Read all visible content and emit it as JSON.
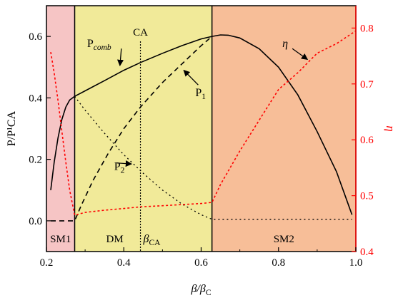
{
  "chart_data": {
    "type": "line",
    "xlabel": "β/βC",
    "xlabel_main": "β/β",
    "xlabel_sub": "C",
    "ylabel_left": "P/P¹CA",
    "ylabel_right": "η",
    "xlim": [
      0.2,
      1.0
    ],
    "ylim_left": [
      -0.1,
      0.7
    ],
    "ylim_right": [
      0.4,
      0.84
    ],
    "xticks": [
      0.2,
      0.4,
      0.6,
      0.8,
      1.0
    ],
    "xtick_labels": [
      "0.2",
      "0.4",
      "0.6",
      "0.8",
      "1.0"
    ],
    "yticks_left": [
      0.0,
      0.2,
      0.4,
      0.6
    ],
    "ytick_labels_left": [
      "0.0",
      "0.2",
      "0.4",
      "0.6"
    ],
    "yticks_right": [
      0.4,
      0.5,
      0.6,
      0.7,
      0.8
    ],
    "ytick_labels_right": [
      "0.4",
      "0.5",
      "0.6",
      "0.7",
      "0.8"
    ],
    "regions": [
      {
        "label": "SM1",
        "x0": 0.2,
        "x1": 0.273,
        "color": "#f6c5c5"
      },
      {
        "label": "DM",
        "x0": 0.273,
        "x1": 0.628,
        "color": "#f1ea99"
      },
      {
        "label": "SM2",
        "x0": 0.628,
        "x1": 1.0,
        "color": "#f7be98"
      }
    ],
    "ca_line": {
      "x": 0.443,
      "top_label": "CA",
      "bottom_label_main": "β",
      "bottom_label_sub": "CA"
    },
    "series": [
      {
        "name": "Pcomb",
        "axis": "left",
        "style": "solid",
        "color": "#000000",
        "points": [
          [
            0.211,
            0.1
          ],
          [
            0.22,
            0.19
          ],
          [
            0.23,
            0.27
          ],
          [
            0.24,
            0.33
          ],
          [
            0.25,
            0.37
          ],
          [
            0.26,
            0.393
          ],
          [
            0.273,
            0.405
          ],
          [
            0.3,
            0.423
          ],
          [
            0.35,
            0.456
          ],
          [
            0.4,
            0.49
          ],
          [
            0.443,
            0.515
          ],
          [
            0.5,
            0.545
          ],
          [
            0.55,
            0.57
          ],
          [
            0.6,
            0.592
          ],
          [
            0.628,
            0.6
          ],
          [
            0.65,
            0.605
          ],
          [
            0.67,
            0.604
          ],
          [
            0.7,
            0.595
          ],
          [
            0.75,
            0.56
          ],
          [
            0.8,
            0.5
          ],
          [
            0.85,
            0.41
          ],
          [
            0.9,
            0.29
          ],
          [
            0.95,
            0.16
          ],
          [
            0.99,
            0.02
          ]
        ]
      },
      {
        "name": "P1",
        "axis": "left",
        "style": "dashed",
        "color": "#000000",
        "points": [
          [
            0.211,
            0.0
          ],
          [
            0.273,
            0.0
          ],
          [
            0.29,
            0.05
          ],
          [
            0.32,
            0.13
          ],
          [
            0.36,
            0.22
          ],
          [
            0.4,
            0.3
          ],
          [
            0.443,
            0.37
          ],
          [
            0.5,
            0.45
          ],
          [
            0.55,
            0.51
          ],
          [
            0.6,
            0.57
          ],
          [
            0.628,
            0.6
          ]
        ]
      },
      {
        "name": "P2",
        "axis": "left",
        "style": "dotted",
        "color": "#000000",
        "points": [
          [
            0.273,
            0.405
          ],
          [
            0.3,
            0.36
          ],
          [
            0.35,
            0.285
          ],
          [
            0.4,
            0.215
          ],
          [
            0.45,
            0.155
          ],
          [
            0.5,
            0.1
          ],
          [
            0.55,
            0.055
          ],
          [
            0.6,
            0.02
          ],
          [
            0.628,
            0.005
          ],
          [
            0.99,
            0.005
          ]
        ]
      },
      {
        "name": "η",
        "axis": "right",
        "style": "dashed",
        "color": "#ff0000",
        "points": [
          [
            0.211,
            0.757
          ],
          [
            0.22,
            0.72
          ],
          [
            0.23,
            0.67
          ],
          [
            0.24,
            0.615
          ],
          [
            0.25,
            0.56
          ],
          [
            0.26,
            0.51
          ],
          [
            0.273,
            0.465
          ],
          [
            0.3,
            0.47
          ],
          [
            0.35,
            0.474
          ],
          [
            0.4,
            0.477
          ],
          [
            0.443,
            0.48
          ],
          [
            0.5,
            0.482
          ],
          [
            0.55,
            0.484
          ],
          [
            0.6,
            0.486
          ],
          [
            0.628,
            0.488
          ],
          [
            0.65,
            0.52
          ],
          [
            0.7,
            0.58
          ],
          [
            0.75,
            0.635
          ],
          [
            0.8,
            0.69
          ],
          [
            0.85,
            0.72
          ],
          [
            0.9,
            0.755
          ],
          [
            0.95,
            0.772
          ],
          [
            1.0,
            0.795
          ]
        ]
      }
    ],
    "annotations": [
      {
        "text_main": "P",
        "text_sub": "comb",
        "x": 0.305,
        "y": 0.565,
        "arrow_to": [
          0.39,
          0.505
        ]
      },
      {
        "text_main": "P",
        "text_sub": "1",
        "x": 0.585,
        "y": 0.405,
        "arrow_to": [
          0.555,
          0.49
        ]
      },
      {
        "text_main": "P",
        "text_sub": "2",
        "x": 0.375,
        "y": 0.165,
        "arrow_to": [
          0.42,
          0.185
        ]
      },
      {
        "text_main": "η",
        "text_sub": "",
        "x": 0.81,
        "y": 0.565,
        "arrow_to": [
          0.875,
          0.525
        ]
      }
    ]
  }
}
